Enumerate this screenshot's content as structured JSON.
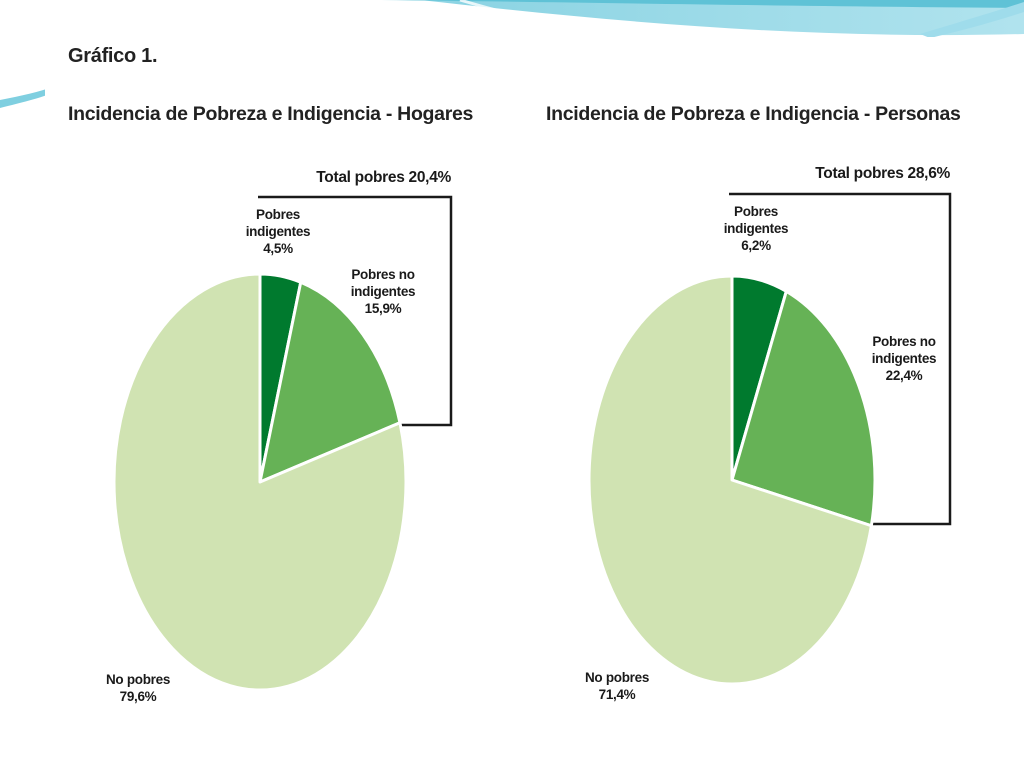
{
  "figure_label": "Gráfico 1.",
  "colors": {
    "indigentes": "#007a2e",
    "no_indigentes": "#66b256",
    "no_pobres": "#d0e3b2",
    "bracket": "#1a1a1a",
    "deco_teal": "#7fd0e0",
    "deco_light": "#c8ecf4"
  },
  "chart_data": [
    {
      "type": "pie",
      "title": "Incidencia de Pobreza e Indigencia - Hogares",
      "total_label": "Total pobres 20,4%",
      "slices": [
        {
          "key": "indigentes",
          "lines": [
            "Pobres",
            "indigentes",
            "4,5%"
          ],
          "value": 4.5
        },
        {
          "key": "no_indigentes",
          "lines": [
            "Pobres no",
            "indigentes",
            "15,9%"
          ],
          "value": 15.9
        },
        {
          "key": "no_pobres",
          "lines": [
            "No pobres",
            "79,6%"
          ],
          "value": 79.6
        }
      ]
    },
    {
      "type": "pie",
      "title": "Incidencia de Pobreza e Indigencia - Personas",
      "total_label": "Total pobres 28,6%",
      "slices": [
        {
          "key": "indigentes",
          "lines": [
            "Pobres",
            "indigentes",
            "6,2%"
          ],
          "value": 6.2
        },
        {
          "key": "no_indigentes",
          "lines": [
            "Pobres no",
            "indigentes",
            "22,4%"
          ],
          "value": 22.4
        },
        {
          "key": "no_pobres",
          "lines": [
            "No pobres",
            "71,4%"
          ],
          "value": 71.4
        }
      ]
    }
  ]
}
